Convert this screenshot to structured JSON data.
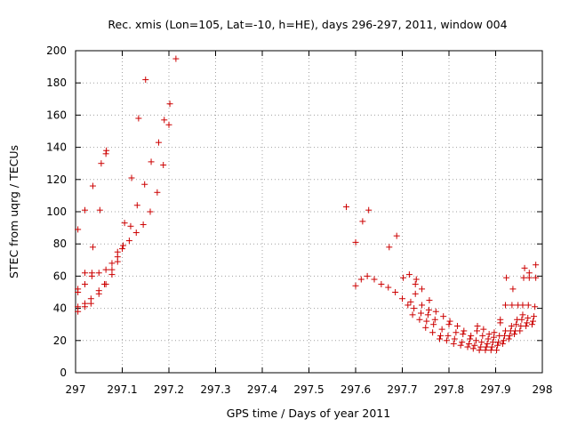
{
  "chart_data": {
    "type": "scatter",
    "title": "Rec. xmis (Lon=105, Lat=-10, h=HE), days 296-297, 2011, window 004",
    "xlabel": "GPS time / Days of year 2011",
    "ylabel": "STEC from uqrg / TECUs",
    "xlim": [
      297,
      298
    ],
    "ylim": [
      0,
      200
    ],
    "x_ticks": [
      "297",
      "297.1",
      "297.2",
      "297.3",
      "297.4",
      "297.5",
      "297.6",
      "297.7",
      "297.8",
      "297.9",
      "298"
    ],
    "y_ticks": [
      "0",
      "20",
      "40",
      "60",
      "80",
      "100",
      "120",
      "140",
      "160",
      "180",
      "200"
    ],
    "grid": true,
    "marker": "+",
    "color": "#cc0000",
    "series": [
      {
        "points": [
          [
            297.005,
            38
          ],
          [
            297.005,
            41
          ],
          [
            297.005,
            50
          ],
          [
            297.005,
            52
          ],
          [
            297.005,
            89
          ],
          [
            297.02,
            41
          ],
          [
            297.02,
            43
          ],
          [
            297.02,
            55
          ],
          [
            297.02,
            62
          ],
          [
            297.02,
            101
          ],
          [
            297.033,
            43
          ],
          [
            297.033,
            46
          ],
          [
            297.035,
            60
          ],
          [
            297.035,
            62
          ],
          [
            297.037,
            78
          ],
          [
            297.037,
            116
          ],
          [
            297.05,
            49
          ],
          [
            297.05,
            51
          ],
          [
            297.05,
            62
          ],
          [
            297.052,
            101
          ],
          [
            297.055,
            130
          ],
          [
            297.062,
            55
          ],
          [
            297.065,
            55
          ],
          [
            297.065,
            64
          ],
          [
            297.065,
            136
          ],
          [
            297.066,
            138
          ],
          [
            297.078,
            61
          ],
          [
            297.078,
            64
          ],
          [
            297.078,
            68
          ],
          [
            297.09,
            69
          ],
          [
            297.09,
            72
          ],
          [
            297.09,
            75
          ],
          [
            297.1,
            77
          ],
          [
            297.102,
            79
          ],
          [
            297.105,
            93
          ],
          [
            297.115,
            82
          ],
          [
            297.118,
            91
          ],
          [
            297.12,
            121
          ],
          [
            297.13,
            87
          ],
          [
            297.132,
            104
          ],
          [
            297.135,
            158
          ],
          [
            297.145,
            92
          ],
          [
            297.148,
            117
          ],
          [
            297.15,
            182
          ],
          [
            297.16,
            100
          ],
          [
            297.162,
            131
          ],
          [
            297.175,
            112
          ],
          [
            297.178,
            143
          ],
          [
            297.188,
            129
          ],
          [
            297.19,
            157
          ],
          [
            297.2,
            154
          ],
          [
            297.202,
            167
          ],
          [
            297.215,
            195
          ],
          [
            297.58,
            103
          ],
          [
            297.6,
            81
          ],
          [
            297.6,
            54
          ],
          [
            297.612,
            58
          ],
          [
            297.615,
            94
          ],
          [
            297.625,
            60
          ],
          [
            297.628,
            101
          ],
          [
            297.64,
            58
          ],
          [
            297.655,
            55
          ],
          [
            297.67,
            53
          ],
          [
            297.672,
            78
          ],
          [
            297.685,
            50
          ],
          [
            297.688,
            85
          ],
          [
            297.7,
            46
          ],
          [
            297.702,
            59
          ],
          [
            297.712,
            42
          ],
          [
            297.715,
            61
          ],
          [
            297.718,
            44
          ],
          [
            297.722,
            36
          ],
          [
            297.725,
            40
          ],
          [
            297.728,
            49
          ],
          [
            297.728,
            55
          ],
          [
            297.73,
            58
          ],
          [
            297.737,
            33
          ],
          [
            297.74,
            37
          ],
          [
            297.742,
            42
          ],
          [
            297.742,
            52
          ],
          [
            297.75,
            28
          ],
          [
            297.752,
            32
          ],
          [
            297.755,
            36
          ],
          [
            297.757,
            39
          ],
          [
            297.758,
            45
          ],
          [
            297.765,
            25
          ],
          [
            297.767,
            30
          ],
          [
            297.77,
            33
          ],
          [
            297.772,
            38
          ],
          [
            297.78,
            21
          ],
          [
            297.782,
            23
          ],
          [
            297.785,
            27
          ],
          [
            297.788,
            35
          ],
          [
            297.795,
            20
          ],
          [
            297.798,
            23
          ],
          [
            297.8,
            30
          ],
          [
            297.802,
            32
          ],
          [
            297.81,
            18
          ],
          [
            297.812,
            21
          ],
          [
            297.815,
            25
          ],
          [
            297.818,
            29
          ],
          [
            297.825,
            17
          ],
          [
            297.828,
            19
          ],
          [
            297.83,
            24
          ],
          [
            297.832,
            26
          ],
          [
            297.84,
            16
          ],
          [
            297.843,
            18
          ],
          [
            297.845,
            21
          ],
          [
            297.847,
            23
          ],
          [
            297.852,
            15
          ],
          [
            297.855,
            17
          ],
          [
            297.858,
            20
          ],
          [
            297.86,
            26
          ],
          [
            297.861,
            29
          ],
          [
            297.865,
            14
          ],
          [
            297.868,
            16
          ],
          [
            297.87,
            19
          ],
          [
            297.872,
            23
          ],
          [
            297.874,
            27
          ],
          [
            297.878,
            14
          ],
          [
            297.88,
            16
          ],
          [
            297.882,
            18
          ],
          [
            297.884,
            21
          ],
          [
            297.886,
            24
          ],
          [
            297.89,
            14
          ],
          [
            297.892,
            16
          ],
          [
            297.894,
            19
          ],
          [
            297.896,
            22
          ],
          [
            297.897,
            25
          ],
          [
            297.902,
            14
          ],
          [
            297.904,
            17
          ],
          [
            297.906,
            19
          ],
          [
            297.908,
            23
          ],
          [
            297.91,
            31
          ],
          [
            297.91,
            33
          ],
          [
            297.915,
            18
          ],
          [
            297.917,
            20
          ],
          [
            297.919,
            23
          ],
          [
            297.921,
            26
          ],
          [
            297.921,
            42
          ],
          [
            297.923,
            59
          ],
          [
            297.928,
            21
          ],
          [
            297.93,
            23
          ],
          [
            297.932,
            26
          ],
          [
            297.934,
            29
          ],
          [
            297.935,
            42
          ],
          [
            297.937,
            52
          ],
          [
            297.94,
            24
          ],
          [
            297.942,
            26
          ],
          [
            297.944,
            30
          ],
          [
            297.946,
            33
          ],
          [
            297.948,
            42
          ],
          [
            297.952,
            26
          ],
          [
            297.954,
            29
          ],
          [
            297.956,
            33
          ],
          [
            297.958,
            36
          ],
          [
            297.958,
            42
          ],
          [
            297.96,
            59
          ],
          [
            297.962,
            65
          ],
          [
            297.965,
            29
          ],
          [
            297.967,
            31
          ],
          [
            297.969,
            34
          ],
          [
            297.97,
            42
          ],
          [
            297.972,
            59
          ],
          [
            297.972,
            62
          ],
          [
            297.978,
            30
          ],
          [
            297.98,
            32
          ],
          [
            297.982,
            35
          ],
          [
            297.984,
            41
          ],
          [
            297.986,
            59
          ],
          [
            297.986,
            67
          ]
        ]
      }
    ]
  }
}
